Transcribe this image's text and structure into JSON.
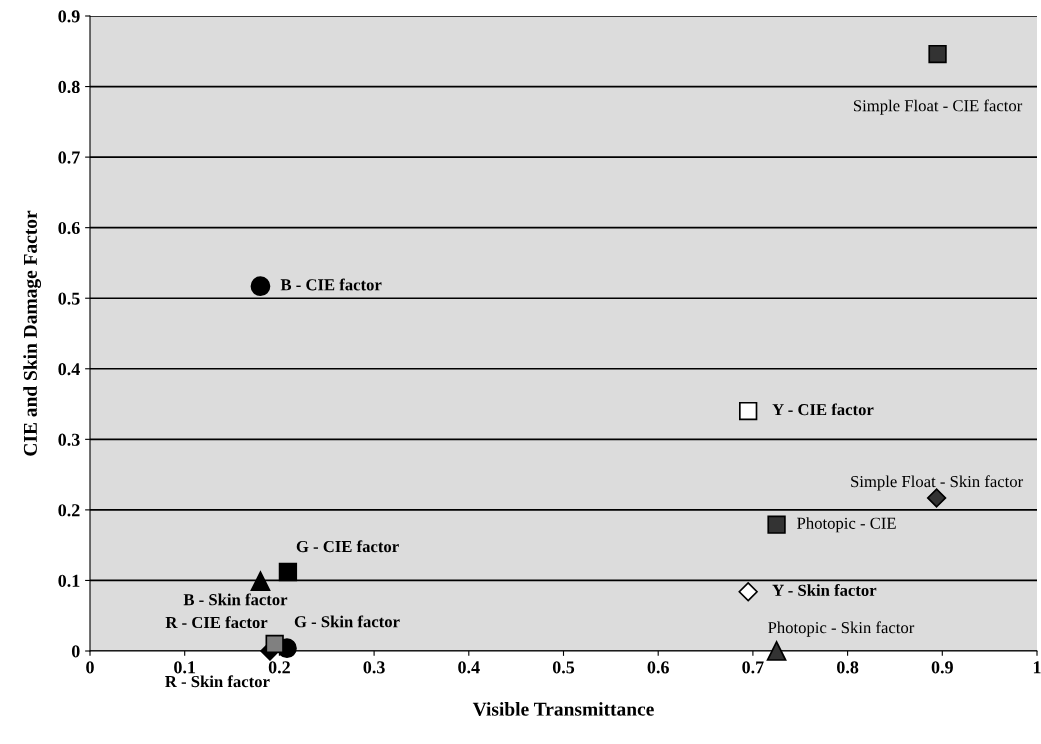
{
  "chart_data": {
    "type": "scatter",
    "xlabel": "Visible Transmittance",
    "ylabel": "CIE and Skin Damage Factor",
    "xlim": [
      0,
      1
    ],
    "xticks": [
      0,
      0.1,
      0.2,
      0.3,
      0.4,
      0.5,
      0.6,
      0.7,
      0.8,
      0.9,
      1
    ],
    "ylim": [
      0,
      0.9
    ],
    "yticks": [
      0,
      0.1,
      0.2,
      0.3,
      0.4,
      0.5,
      0.6,
      0.7,
      0.8,
      0.9
    ],
    "grid": "y",
    "legend": false,
    "series": [
      {
        "name": "Simple Float - CIE factor",
        "color": "#333333",
        "marker": "square",
        "x": [
          0.895
        ],
        "values": [
          0.846
        ]
      },
      {
        "name": "B - CIE factor",
        "color": "#000000",
        "marker": "circle",
        "x": [
          0.18
        ],
        "values": [
          0.517
        ]
      },
      {
        "name": "Y - CIE factor",
        "color": "#ffffff",
        "marker": "square",
        "x": [
          0.695
        ],
        "values": [
          0.34
        ]
      },
      {
        "name": "Simple Float - Skin factor",
        "color": "#333333",
        "marker": "diamond",
        "x": [
          0.894
        ],
        "values": [
          0.217
        ]
      },
      {
        "name": "Photopic - CIE",
        "color": "#333333",
        "marker": "square",
        "x": [
          0.725
        ],
        "values": [
          0.179
        ]
      },
      {
        "name": "G - CIE factor",
        "color": "#000000",
        "marker": "square",
        "x": [
          0.209
        ],
        "values": [
          0.112
        ]
      },
      {
        "name": "B - Skin factor",
        "color": "#000000",
        "marker": "triangle",
        "x": [
          0.18
        ],
        "values": [
          0.099
        ]
      },
      {
        "name": "Y - Skin factor",
        "color": "#ffffff",
        "marker": "diamond",
        "x": [
          0.695
        ],
        "values": [
          0.084
        ]
      },
      {
        "name": "Photopic - Skin factor",
        "color": "#333333",
        "marker": "triangle",
        "x": [
          0.725
        ],
        "values": [
          0.0
        ]
      },
      {
        "name": "R - CIE factor",
        "color": "#808080",
        "marker": "square",
        "x": [
          0.195
        ],
        "values": [
          0.01
        ]
      },
      {
        "name": "R - Skin factor",
        "color": "#000000",
        "marker": "diamond",
        "x": [
          0.19
        ],
        "values": [
          0.0
        ]
      },
      {
        "name": "G - Skin factor",
        "color": "#000000",
        "marker": "circle",
        "x": [
          0.208
        ],
        "values": [
          0.004
        ]
      }
    ]
  }
}
